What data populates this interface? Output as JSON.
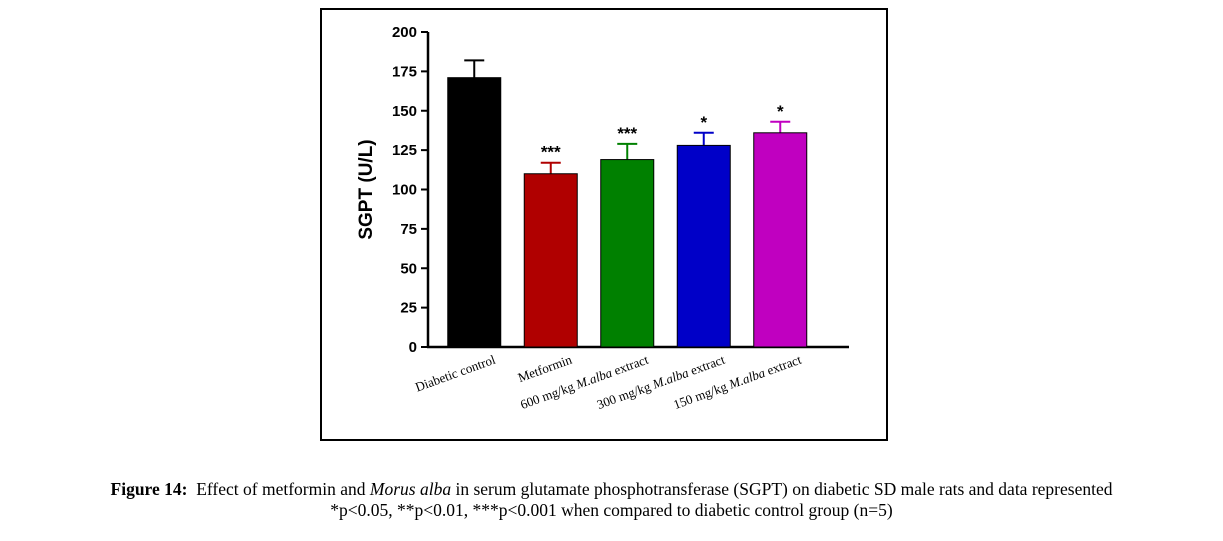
{
  "chart_data": {
    "type": "bar",
    "categories": [
      "Diabetic control",
      "Metformin",
      "600 mg/kg M.alba extract",
      "300 mg/kg M.alba extract",
      "150 mg/kg M.alba extract"
    ],
    "category_parts": [
      [
        {
          "t": "Diabetic control",
          "i": false
        }
      ],
      [
        {
          "t": "Metformin",
          "i": false
        }
      ],
      [
        {
          "t": "600 mg/kg ",
          "i": false
        },
        {
          "t": "M.alba",
          "i": true
        },
        {
          "t": " extract",
          "i": false
        }
      ],
      [
        {
          "t": "300 mg/kg ",
          "i": false
        },
        {
          "t": "M.alba",
          "i": true
        },
        {
          "t": " extract",
          "i": false
        }
      ],
      [
        {
          "t": "150 mg/kg ",
          "i": false
        },
        {
          "t": "M.alba",
          "i": true
        },
        {
          "t": " extract",
          "i": false
        }
      ]
    ],
    "values": [
      171,
      110,
      119,
      128,
      136
    ],
    "errors": [
      11,
      7,
      10,
      8,
      7
    ],
    "significance": [
      "",
      "***",
      "***",
      "*",
      "*"
    ],
    "colors": [
      "#000000",
      "#b00000",
      "#008000",
      "#0000c8",
      "#c000c0"
    ],
    "ylabel": "SGPT (U/L)",
    "ylim": [
      0,
      200
    ],
    "yticks": [
      0,
      25,
      50,
      75,
      100,
      125,
      150,
      175,
      200
    ],
    "grid": false,
    "legend": "none"
  },
  "caption": {
    "figure_label": "Figure 14:",
    "line1_a": "Effect of metformin and",
    "line1_italic": "Morus alba",
    "line1_b": "in serum glutamate phosphotransferase (SGPT) on diabetic SD male rats and data represented",
    "line2": "*p<0.05, **p<0.01, ***p<0.001 when compared to diabetic control group (n=5)"
  }
}
